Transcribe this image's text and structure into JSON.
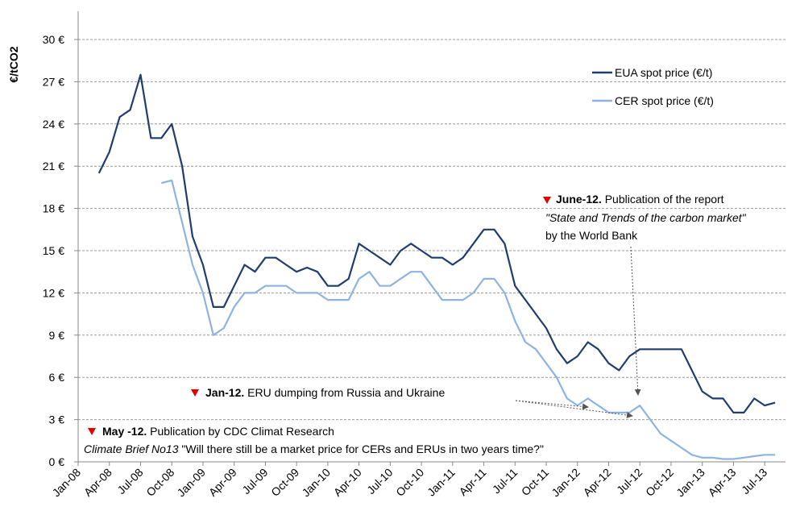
{
  "chart_data": {
    "type": "line",
    "ylabel": "€/tCO2",
    "x": [
      "2008-03",
      "2008-04",
      "2008-05",
      "2008-06",
      "2008-07",
      "2008-08",
      "2008-09",
      "2008-10",
      "2008-11",
      "2008-12",
      "2009-01",
      "2009-02",
      "2009-03",
      "2009-04",
      "2009-05",
      "2009-06",
      "2009-07",
      "2009-08",
      "2009-09",
      "2009-10",
      "2009-11",
      "2009-12",
      "2010-01",
      "2010-02",
      "2010-03",
      "2010-04",
      "2010-05",
      "2010-06",
      "2010-07",
      "2010-08",
      "2010-09",
      "2010-10",
      "2010-11",
      "2010-12",
      "2011-01",
      "2011-02",
      "2011-03",
      "2011-04",
      "2011-05",
      "2011-06",
      "2011-07",
      "2011-08",
      "2011-09",
      "2011-10",
      "2011-11",
      "2011-12",
      "2012-01",
      "2012-02",
      "2012-03",
      "2012-04",
      "2012-05",
      "2012-06",
      "2012-07",
      "2012-08",
      "2012-09",
      "2012-10",
      "2012-11",
      "2012-12",
      "2013-01",
      "2013-02",
      "2013-03",
      "2013-04",
      "2013-05",
      "2013-06",
      "2013-07",
      "2013-08"
    ],
    "series": [
      {
        "name": "EUA spot price (€/t)",
        "color": "#1f3d6e",
        "values": [
          20.5,
          22,
          24.5,
          25,
          27.5,
          23,
          23,
          24,
          21,
          16,
          14,
          11,
          11,
          12.5,
          14,
          13.5,
          14.5,
          14.5,
          14,
          13.5,
          13.8,
          13.5,
          12.5,
          12.5,
          13,
          15.5,
          15,
          14.5,
          14,
          15,
          15.5,
          15,
          14.5,
          14.5,
          14,
          14.5,
          15.5,
          16.5,
          16.5,
          15.5,
          12.5,
          11.5,
          10.5,
          9.5,
          8,
          7,
          7.5,
          8.5,
          8,
          7,
          6.5,
          7.5,
          8,
          8,
          8,
          8,
          8,
          6.5,
          5,
          4.5,
          4.5,
          3.5,
          3.5,
          4.5,
          4,
          4.2
        ]
      },
      {
        "name": "CER spot price (€/t)",
        "color": "#8db3e2",
        "values": [
          null,
          null,
          null,
          null,
          null,
          null,
          19.8,
          20,
          17,
          14,
          12,
          9,
          9.5,
          11,
          12,
          12,
          12.5,
          12.5,
          12.5,
          12,
          12,
          12,
          11.5,
          11.5,
          11.5,
          13,
          13.5,
          12.5,
          12.5,
          13,
          13.5,
          13.5,
          12.5,
          11.5,
          11.5,
          11.5,
          12,
          13,
          13,
          12,
          10,
          8.5,
          8,
          7,
          6,
          4.5,
          4,
          4.5,
          4,
          3.5,
          3.5,
          3.5,
          4,
          3,
          2,
          1.5,
          1,
          0.5,
          0.3,
          0.3,
          0.2,
          0.2,
          0.3,
          0.4,
          0.5,
          0.5
        ]
      }
    ],
    "xlim": [
      "2008-01",
      "2013-09"
    ],
    "xticks": [
      {
        "value": "2008-01",
        "label": "Jan-08"
      },
      {
        "value": "2008-04",
        "label": "Apr-08"
      },
      {
        "value": "2008-07",
        "label": "Jul-08"
      },
      {
        "value": "2008-10",
        "label": "Oct-08"
      },
      {
        "value": "2009-01",
        "label": "Jan-09"
      },
      {
        "value": "2009-04",
        "label": "Apr-09"
      },
      {
        "value": "2009-07",
        "label": "Jul-09"
      },
      {
        "value": "2009-10",
        "label": "Oct-09"
      },
      {
        "value": "2010-01",
        "label": "Jan-10"
      },
      {
        "value": "2010-04",
        "label": "Apr-10"
      },
      {
        "value": "2010-07",
        "label": "Jul-10"
      },
      {
        "value": "2010-10",
        "label": "Oct-10"
      },
      {
        "value": "2011-01",
        "label": "Jan-11"
      },
      {
        "value": "2011-04",
        "label": "Apr-11"
      },
      {
        "value": "2011-07",
        "label": "Jul-11"
      },
      {
        "value": "2011-10",
        "label": "Oct-11"
      },
      {
        "value": "2012-01",
        "label": "Jan-12"
      },
      {
        "value": "2012-04",
        "label": "Apr-12"
      },
      {
        "value": "2012-07",
        "label": "Jul-12"
      },
      {
        "value": "2012-10",
        "label": "Oct-12"
      },
      {
        "value": "2013-01",
        "label": "Jan-13"
      },
      {
        "value": "2013-04",
        "label": "Apr-13"
      },
      {
        "value": "2013-07",
        "label": "Jul-13"
      }
    ],
    "ylim": [
      0,
      30
    ],
    "yticks": [
      {
        "value": 0,
        "label": "0 €"
      },
      {
        "value": 3,
        "label": "3 €"
      },
      {
        "value": 6,
        "label": "6 €"
      },
      {
        "value": 9,
        "label": "9 €"
      },
      {
        "value": 12,
        "label": "12 €"
      },
      {
        "value": 15,
        "label": "15 €"
      },
      {
        "value": 18,
        "label": "18 €"
      },
      {
        "value": 21,
        "label": "21 €"
      },
      {
        "value": 24,
        "label": "24 €"
      },
      {
        "value": 27,
        "label": "27 €"
      },
      {
        "value": 30,
        "label": "30 €"
      }
    ],
    "grid": true,
    "legend": "top-right",
    "annotations": [
      {
        "heading": "June-12.",
        "text": "Publication of the report",
        "italic": "\"State and Trends of the carbon market\"",
        "after": "by the World Bank"
      },
      {
        "heading": "Jan-12.",
        "text": "ERU dumping from Russia and Ukraine"
      },
      {
        "heading": "May -12.",
        "text": "Publication by CDC Climat Research",
        "italic": "Climate Brief No13",
        "after": "\"Will there still be a market price for CERs and ERUs in two years time?\""
      }
    ]
  }
}
